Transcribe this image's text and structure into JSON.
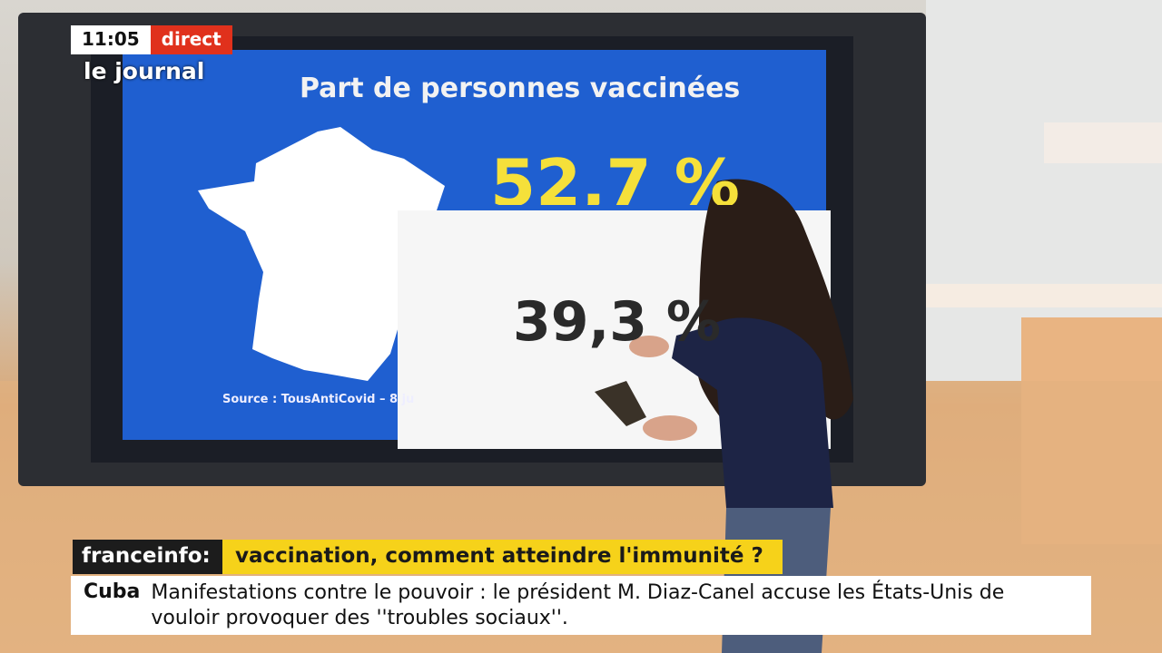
{
  "header": {
    "time": "11:05",
    "live": "direct",
    "program": "le journal"
  },
  "screen": {
    "title": "Part de personnes vaccinées",
    "big_value": "52,7 %",
    "panel_value": "39,3 %",
    "source": "Source : TousAntiCovid – 8 ju"
  },
  "banner": {
    "brand": "franceinfo:",
    "headline": "vaccination, comment atteindre l'immunité ?"
  },
  "ticker": {
    "tag": "Cuba",
    "text": "Manifestations contre le pouvoir : le président M. Diaz-Canel accuse les États-Unis de vouloir provoquer des ''troubles sociaux''."
  }
}
